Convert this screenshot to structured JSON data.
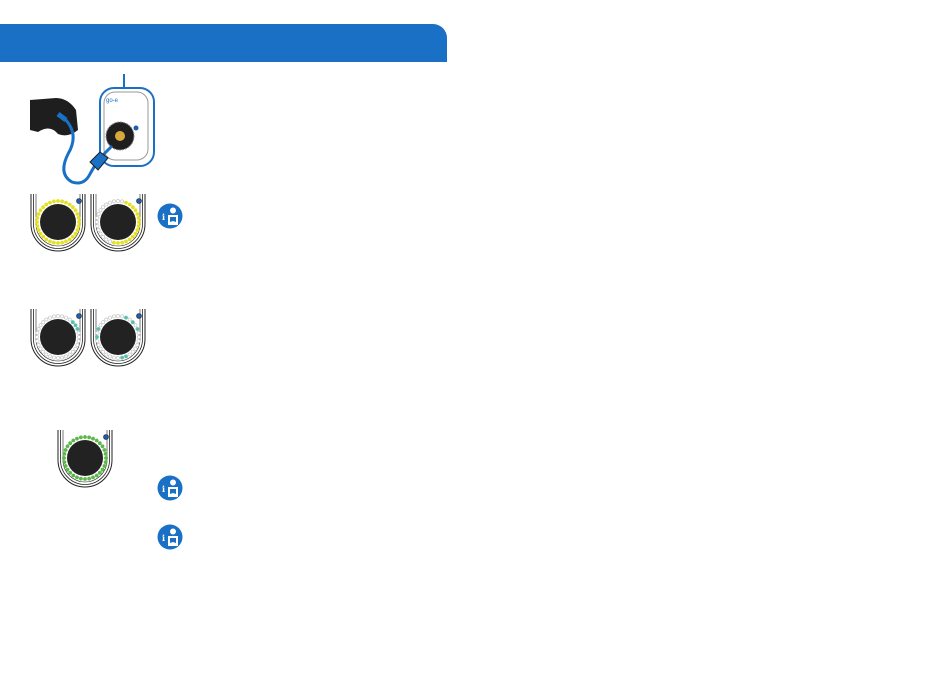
{
  "colors": {
    "header": "#1a70c5",
    "led_off": "#d0d0d0",
    "yellow": "#e6e022",
    "teal": "#5bbfae",
    "green": "#5cb84a",
    "status_dot": "#1a5fb0"
  },
  "illustration": {
    "name": "car-connected-to-wallbox-charger"
  },
  "panels": [
    {
      "led_color": "yellow",
      "lit": "all"
    },
    {
      "led_color": "yellow",
      "lit": "right-side"
    },
    {
      "led_color": "teal",
      "lit": "top-right-few"
    },
    {
      "led_color": "teal",
      "lit": "scattered"
    },
    {
      "led_color": "green",
      "lit": "all"
    }
  ],
  "info_icons": [
    "see-manual-icon",
    "see-manual-icon",
    "see-manual-icon"
  ]
}
